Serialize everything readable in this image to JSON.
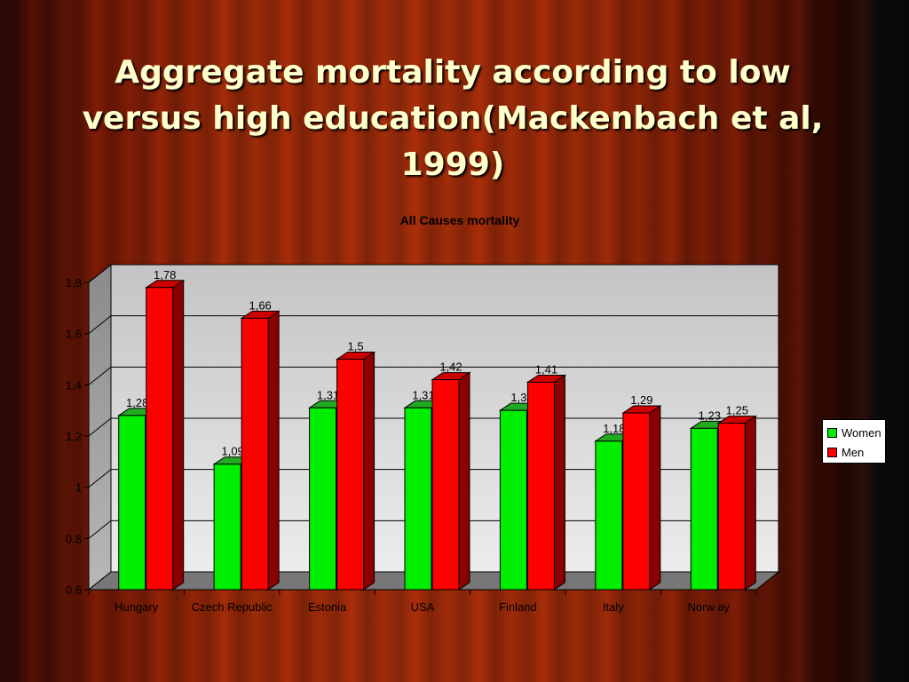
{
  "slide": {
    "title_lines": [
      "Aggregate mortality according to low",
      "versus high education(Mackenbach et al,",
      "1999)"
    ]
  },
  "chart_data": {
    "type": "bar",
    "title": "All Causes mortality",
    "categories": [
      "Hungary",
      "Czech Republic",
      "Estonia",
      "USA",
      "Finland",
      "Italy",
      "Norw ay"
    ],
    "series": [
      {
        "name": "Women",
        "color": "#00ee00",
        "side": "#00a000",
        "top": "#22aa22",
        "values": [
          1.28,
          1.09,
          1.31,
          1.31,
          1.3,
          1.18,
          1.23
        ],
        "labels": [
          "1,28",
          "1,09",
          "1,31",
          "1,31",
          "1,3",
          "1,18",
          "1,23"
        ]
      },
      {
        "name": "Men",
        "color": "#ff0000",
        "side": "#8a0000",
        "top": "#cc0000",
        "values": [
          1.78,
          1.66,
          1.5,
          1.42,
          1.41,
          1.29,
          1.25
        ],
        "labels": [
          "1,78",
          "1,66",
          "1,5",
          "1,42",
          "1,41",
          "1,29",
          "1,25"
        ]
      }
    ],
    "ylim": [
      0.6,
      1.8
    ],
    "yticks": [
      0.6,
      0.8,
      1.0,
      1.2,
      1.4,
      1.6,
      1.8
    ],
    "ytick_labels": [
      "0,6",
      "0,8",
      "1",
      "1,2",
      "1,4",
      "1,6",
      "1,8"
    ],
    "grid": true,
    "legend_position": "right",
    "xlabel": "",
    "ylabel": ""
  }
}
